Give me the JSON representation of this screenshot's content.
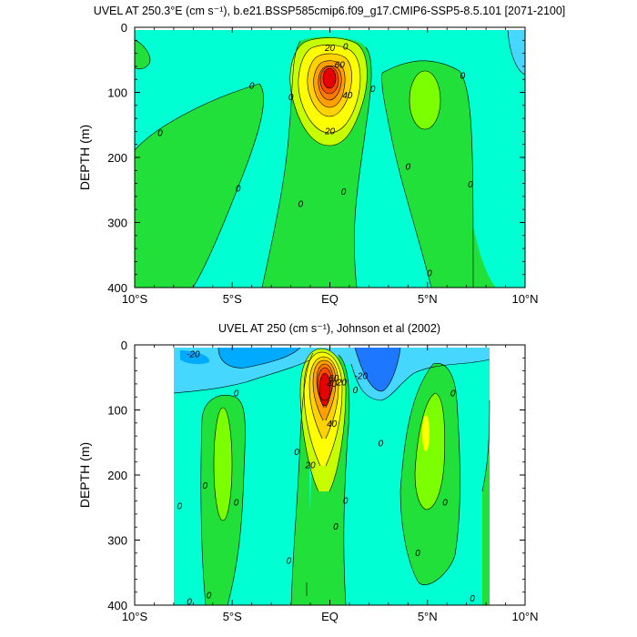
{
  "chart_data": [
    {
      "type": "contour",
      "title": "UVEL AT 250.3°E (cm s⁻¹), b.e21.BSSP585cmip6.f09_g17.CMIP6-SSP5-8.5.101 [2071-2100]",
      "xlabel": "",
      "ylabel": "DEPTH (m)",
      "x_ticks": [
        "10°S",
        "5°S",
        "EQ",
        "5°N",
        "10°N"
      ],
      "x_tick_values": [
        -10,
        -5,
        0,
        5,
        10
      ],
      "y_ticks": [
        "0",
        "100",
        "200",
        "300",
        "400"
      ],
      "y_tick_values": [
        0,
        100,
        200,
        300,
        400
      ],
      "xlim": [
        -10,
        10
      ],
      "ylim": [
        400,
        0
      ],
      "y_reversed": true,
      "contour_labels": [
        {
          "text": "20",
          "x": 0.0,
          "y": 32
        },
        {
          "text": "0",
          "x": 0.8,
          "y": 30
        },
        {
          "text": "60",
          "x": 0.5,
          "y": 58
        },
        {
          "text": "40",
          "x": 0.9,
          "y": 105
        },
        {
          "text": "20",
          "x": 0.0,
          "y": 160
        },
        {
          "text": "0",
          "x": -4.0,
          "y": 90
        },
        {
          "text": "0",
          "x": -2.0,
          "y": 108
        },
        {
          "text": "0",
          "x": -8.7,
          "y": 163
        },
        {
          "text": "0",
          "x": -4.7,
          "y": 248
        },
        {
          "text": "0",
          "x": -1.5,
          "y": 272
        },
        {
          "text": "0",
          "x": 2.2,
          "y": 95
        },
        {
          "text": "0",
          "x": 4.0,
          "y": 215
        },
        {
          "text": "0",
          "x": 6.8,
          "y": 75
        },
        {
          "text": "0",
          "x": 7.2,
          "y": 242
        },
        {
          "text": "0",
          "x": 5.1,
          "y": 378
        },
        {
          "text": "0",
          "x": 0.7,
          "y": 253
        }
      ],
      "core_max": {
        "x": 0.0,
        "y": 80,
        "value_range": "> 60"
      }
    },
    {
      "type": "contour",
      "title": "UVEL AT 250 (cm s⁻¹), Johnson et al (2002)",
      "xlabel": "",
      "ylabel": "DEPTH (m)",
      "x_ticks": [
        "10°S",
        "5°S",
        "EQ",
        "5°N",
        "10°N"
      ],
      "x_tick_values": [
        -10,
        -5,
        0,
        5,
        10
      ],
      "y_ticks": [
        "0",
        "100",
        "200",
        "300",
        "400"
      ],
      "y_tick_values": [
        0,
        100,
        200,
        300,
        400
      ],
      "xlim": [
        -10,
        10
      ],
      "ylim": [
        400,
        0
      ],
      "y_reversed": true,
      "data_extent_x": [
        -8,
        8.2
      ],
      "contour_labels": [
        {
          "text": "-20",
          "x": -7.0,
          "y": 15
        },
        {
          "text": "60",
          "x": 0.2,
          "y": 52
        },
        {
          "text": "40",
          "x": 0.1,
          "y": 60
        },
        {
          "text": "20",
          "x": 0.6,
          "y": 58
        },
        {
          "text": "-20",
          "x": 1.6,
          "y": 48
        },
        {
          "text": "40",
          "x": 0.1,
          "y": 122
        },
        {
          "text": "20",
          "x": -1.0,
          "y": 185
        },
        {
          "text": "0",
          "x": 1.3,
          "y": 70
        },
        {
          "text": "0",
          "x": -4.8,
          "y": 75
        },
        {
          "text": "0",
          "x": -6.4,
          "y": 217
        },
        {
          "text": "0",
          "x": -7.7,
          "y": 248
        },
        {
          "text": "0",
          "x": -4.8,
          "y": 243
        },
        {
          "text": "0",
          "x": -6.2,
          "y": 385
        },
        {
          "text": "0",
          "x": -1.7,
          "y": 165
        },
        {
          "text": "0",
          "x": -2.1,
          "y": 332
        },
        {
          "text": "0",
          "x": 0.8,
          "y": 240
        },
        {
          "text": "0",
          "x": 0.3,
          "y": 280
        },
        {
          "text": "0",
          "x": 2.6,
          "y": 152
        },
        {
          "text": "0",
          "x": 4.5,
          "y": 320
        },
        {
          "text": "0",
          "x": 6.3,
          "y": 75
        },
        {
          "text": "0",
          "x": 5.9,
          "y": 243
        },
        {
          "text": "0",
          "x": 7.3,
          "y": 390
        },
        {
          "text": "0",
          "x": -7.2,
          "y": 395
        }
      ],
      "core_max": {
        "x": -0.3,
        "y": 70,
        "value_range": "> 60"
      }
    }
  ],
  "colors": {
    "bg_cyan": "#00ffd2",
    "weak_negative": "#46d7ff",
    "negative": "#00aaff",
    "strong_negative": "#1e78ff",
    "green": "#22e03a",
    "bright_green": "#7cff00",
    "yellow_green": "#c8ff00",
    "yellow": "#ffff00",
    "light_orange": "#ffd200",
    "orange": "#ffa000",
    "dark_orange": "#ff7800",
    "red_orange": "#ff4b00",
    "red": "#e60000",
    "contour_line": "#000000"
  }
}
